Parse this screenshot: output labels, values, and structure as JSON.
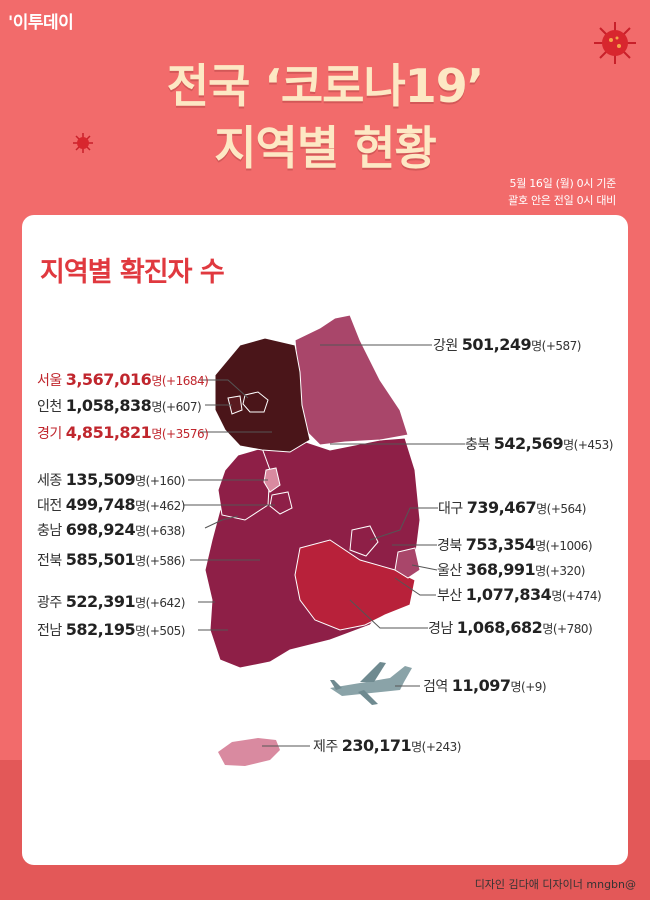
{
  "logo": "이투데이",
  "title": {
    "line1": "전국 ‘코로나19’",
    "line2": "지역별 현황"
  },
  "basis": {
    "line1": "5월 16일 (월) 0시 기준",
    "line2": "괄호 안은 전일 0시 대비"
  },
  "section_title": "지역별 확진자 수",
  "regions": {
    "seoul": {
      "name": "서울",
      "count": "3,567,016",
      "unit": "명",
      "change": "(+1684)"
    },
    "incheon": {
      "name": "인천",
      "count": "1,058,838",
      "unit": "명",
      "change": "(+607)"
    },
    "gyeonggi": {
      "name": "경기",
      "count": "4,851,821",
      "unit": "명",
      "change": "(+3576)"
    },
    "sejong": {
      "name": "세종",
      "count": "135,509",
      "unit": "명",
      "change": "(+160)"
    },
    "daejeon": {
      "name": "대전",
      "count": "499,748",
      "unit": "명",
      "change": "(+462)"
    },
    "chungnam": {
      "name": "충남",
      "count": "698,924",
      "unit": "명",
      "change": "(+638)"
    },
    "jeonbuk": {
      "name": "전북",
      "count": "585,501",
      "unit": "명",
      "change": "(+586)"
    },
    "gwangju": {
      "name": "광주",
      "count": "522,391",
      "unit": "명",
      "change": "(+642)"
    },
    "jeonnam": {
      "name": "전남",
      "count": "582,195",
      "unit": "명",
      "change": "(+505)"
    },
    "gangwon": {
      "name": "강원",
      "count": "501,249",
      "unit": "명",
      "change": "(+587)"
    },
    "chungbuk": {
      "name": "충북",
      "count": "542,569",
      "unit": "명",
      "change": "(+453)"
    },
    "daegu": {
      "name": "대구",
      "count": "739,467",
      "unit": "명",
      "change": "(+564)"
    },
    "gyeongbuk": {
      "name": "경북",
      "count": "753,354",
      "unit": "명",
      "change": "(+1006)"
    },
    "ulsan": {
      "name": "울산",
      "count": "368,991",
      "unit": "명",
      "change": "(+320)"
    },
    "busan": {
      "name": "부산",
      "count": "1,077,834",
      "unit": "명",
      "change": "(+474)"
    },
    "gyeongnam": {
      "name": "경남",
      "count": "1,068,682",
      "unit": "명",
      "change": "(+780)"
    },
    "quarantine": {
      "name": "검역",
      "count": "11,097",
      "unit": "명",
      "change": "(+9)"
    },
    "jeju": {
      "name": "제주",
      "count": "230,171",
      "unit": "명",
      "change": "(+243)"
    }
  },
  "credit": "디자인 김다애 디자이너 mngbn@",
  "colors": {
    "background": "#f26b6b",
    "title": "#fde8c4",
    "accent_red": "#e0393f",
    "seoul_gyeonggi": "#4a1519",
    "gangwon": "#a9466a",
    "central_south": "#8e1f47",
    "gyeongnam_busan": "#b8213a",
    "jeju": "#d98aa0"
  }
}
